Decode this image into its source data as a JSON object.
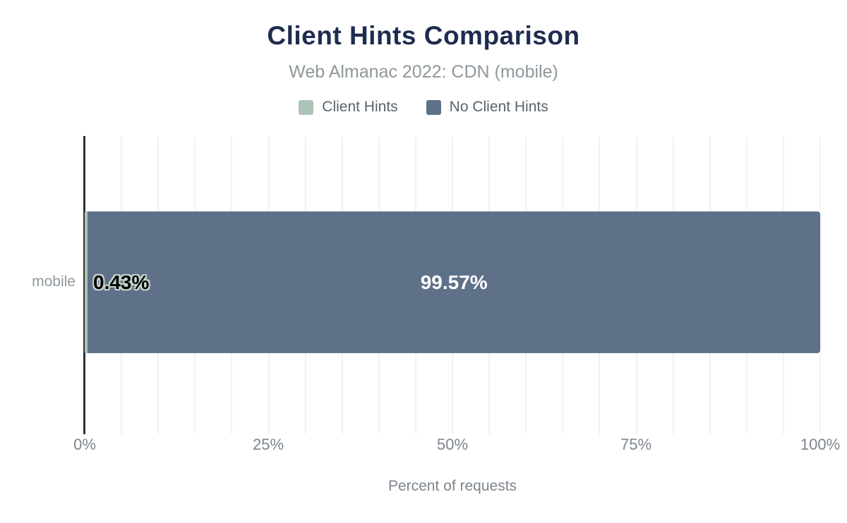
{
  "header": {
    "title": "Client Hints Comparison",
    "subtitle": "Web Almanac 2022: CDN (mobile)"
  },
  "legend": {
    "items": [
      {
        "label": "Client Hints",
        "color": "#aec3b8"
      },
      {
        "label": "No Client Hints",
        "color": "#5f7189"
      }
    ]
  },
  "chart_data": {
    "type": "bar",
    "orientation": "horizontal",
    "stacked": true,
    "title": "Client Hints Comparison",
    "subtitle": "Web Almanac 2022: CDN (mobile)",
    "categories": [
      "mobile"
    ],
    "series": [
      {
        "name": "Client Hints",
        "values": [
          0.43
        ],
        "color": "#aec3b8",
        "data_label": "0.43%"
      },
      {
        "name": "No Client Hints",
        "values": [
          99.57
        ],
        "color": "#5f7189",
        "data_label": "99.57%"
      }
    ],
    "xlabel": "Percent of requests",
    "ylabel": "",
    "xlim": [
      0,
      100
    ],
    "x_tick_labels": [
      "0%",
      "25%",
      "50%",
      "75%",
      "100%"
    ],
    "x_tick_values": [
      0,
      25,
      50,
      75,
      100
    ],
    "gridline_step_percent": 5,
    "grid": true,
    "legend_position": "top"
  },
  "axis": {
    "ticks": [
      "0%",
      "25%",
      "50%",
      "75%",
      "100%"
    ],
    "tick_positions_percent": [
      0,
      25,
      50,
      75,
      100
    ],
    "xlabel": "Percent of requests",
    "category": "mobile"
  },
  "labels": {
    "client_hints_value": "0.43%",
    "no_client_hints_value": "99.57%"
  },
  "colors": {
    "title": "#1e2c4f",
    "subtitle": "#8f979c",
    "client_hints": "#aec3b8",
    "client_hints_outline": "#c4d3c9",
    "no_client_hints": "#5f7189",
    "gridline": "#f2f2f4",
    "axis_line": "#2f3235",
    "tick_text": "#7d858c",
    "background": "#ffffff"
  }
}
